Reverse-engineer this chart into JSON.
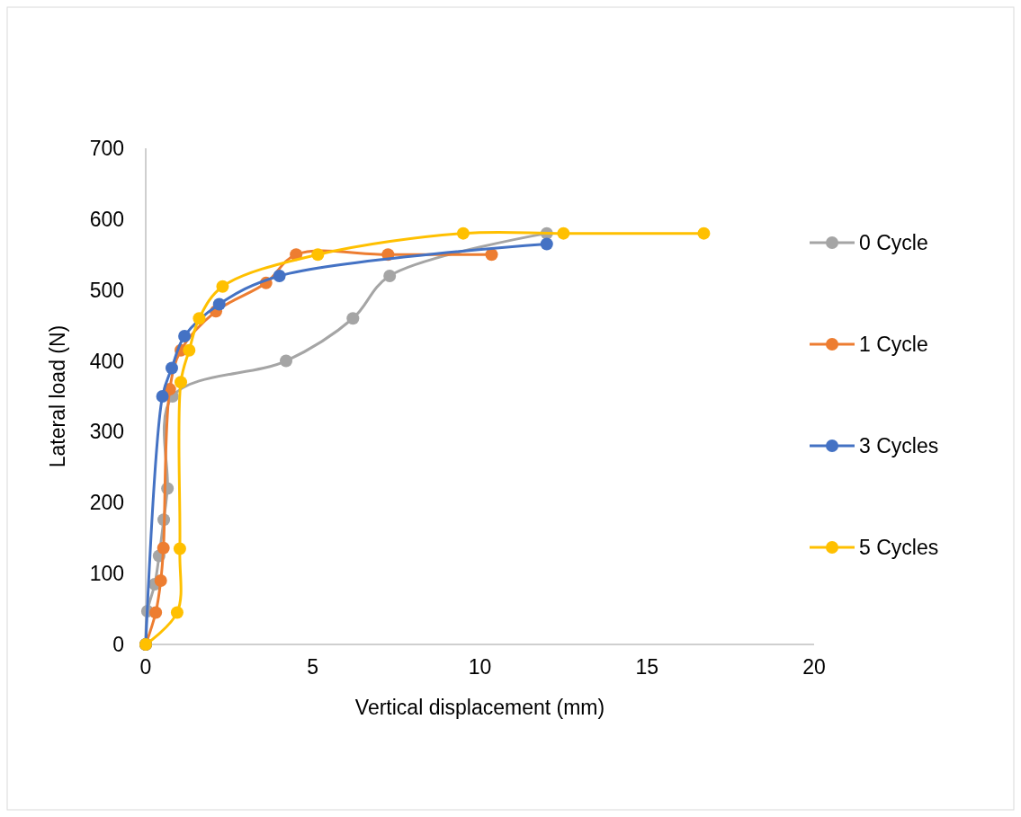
{
  "chart_data": {
    "type": "line",
    "xlabel": "Vertical displacement (mm)",
    "ylabel": "Lateral load (N)",
    "xlim": [
      0,
      20
    ],
    "xticks": [
      0,
      5,
      10,
      15,
      20
    ],
    "ylim": [
      0,
      700
    ],
    "yticks": [
      0,
      100,
      200,
      300,
      400,
      500,
      600,
      700
    ],
    "grid": false,
    "legend": "right",
    "marker": "circle",
    "line_style": "solid",
    "series": [
      {
        "name": "0 Cycle",
        "color": "#a5a5a5",
        "x": [
          0,
          0.05,
          0.27,
          0.4,
          0.54,
          0.65,
          0.8,
          4.2,
          6.2,
          7.3,
          12.0
        ],
        "values": [
          0,
          47,
          85,
          125,
          176,
          220,
          350,
          400,
          460,
          520,
          580
        ]
      },
      {
        "name": "1 Cycle",
        "color": "#ed7d31",
        "x": [
          0,
          0.3,
          0.45,
          0.53,
          0.72,
          1.05,
          2.1,
          3.6,
          4.5,
          7.25,
          10.35
        ],
        "values": [
          0,
          45,
          90,
          136,
          360,
          415,
          470,
          510,
          550,
          550,
          550
        ]
      },
      {
        "name": "3 Cycles",
        "color": "#4472c4",
        "x": [
          0,
          0.5,
          0.78,
          1.16,
          2.2,
          4.0,
          12.0
        ],
        "values": [
          0,
          350,
          390,
          435,
          480,
          520,
          565
        ]
      },
      {
        "name": "5 Cycles",
        "color": "#ffc000",
        "x": [
          0,
          0.94,
          1.02,
          1.05,
          1.3,
          1.6,
          2.3,
          5.15,
          9.5,
          12.5,
          16.7
        ],
        "values": [
          0,
          45,
          135,
          370,
          415,
          460,
          505,
          550,
          580,
          580,
          580
        ]
      }
    ]
  }
}
